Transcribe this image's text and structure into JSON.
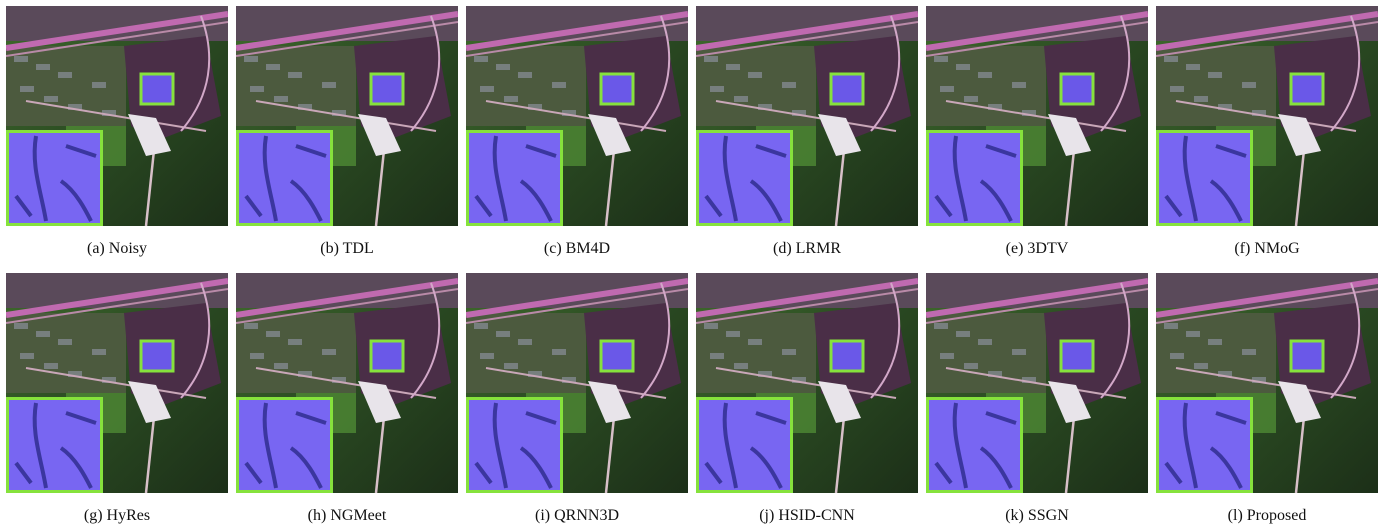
{
  "panels": [
    {
      "caption": "(a) Noisy"
    },
    {
      "caption": "(b) TDL"
    },
    {
      "caption": "(c) BM4D"
    },
    {
      "caption": "(d) LRMR"
    },
    {
      "caption": "(e) 3DTV"
    },
    {
      "caption": "(f) NMoG"
    },
    {
      "caption": "(g) HyRes"
    },
    {
      "caption": "(h) NGMeet"
    },
    {
      "caption": "(i) QRNN3D"
    },
    {
      "caption": "(j) HSID-CNN"
    },
    {
      "caption": "(k) SSGN"
    },
    {
      "caption": "(l) Proposed"
    }
  ]
}
